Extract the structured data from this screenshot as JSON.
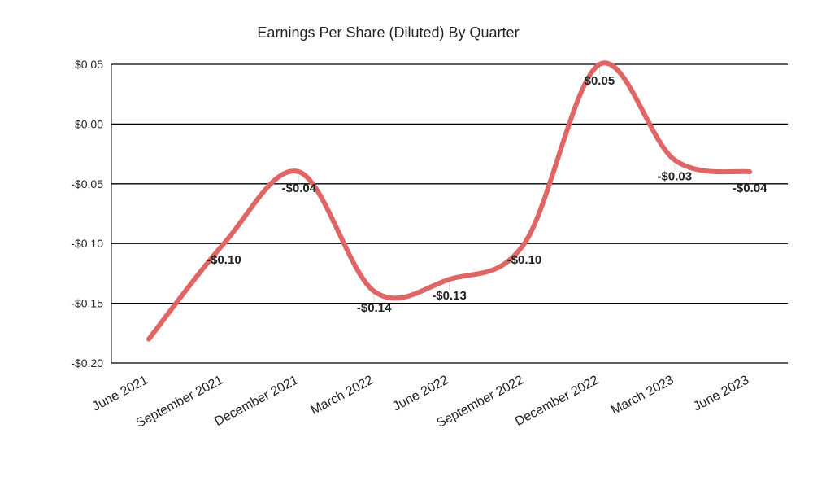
{
  "chart_data": {
    "type": "line",
    "title": "Earnings Per Share (Diluted) By Quarter",
    "xlabel": "",
    "ylabel": "",
    "categories": [
      "June 2021",
      "September 2021",
      "December 2021",
      "March 2022",
      "June 2022",
      "September 2022",
      "December 2022",
      "March 2023",
      "June 2023"
    ],
    "series": [
      {
        "values": [
          -0.18,
          -0.1,
          -0.04,
          -0.14,
          -0.13,
          -0.1,
          0.05,
          -0.03,
          -0.04
        ]
      }
    ],
    "data_labels": [
      "",
      "-$0.10",
      "-$0.04",
      "-$0.14",
      "-$0.13",
      "-$0.10",
      "$0.05",
      "-$0.03",
      "-$0.04"
    ],
    "y_ticks": [
      0.05,
      0.0,
      -0.05,
      -0.1,
      -0.15,
      -0.2
    ],
    "y_tick_labels": [
      "$0.05",
      "$0.00",
      "-$0.05",
      "-$0.10",
      "-$0.15",
      "-$0.20"
    ],
    "ylim": [
      -0.2,
      0.05
    ],
    "grid": true,
    "legend": "none",
    "line_color": "#e06666"
  }
}
